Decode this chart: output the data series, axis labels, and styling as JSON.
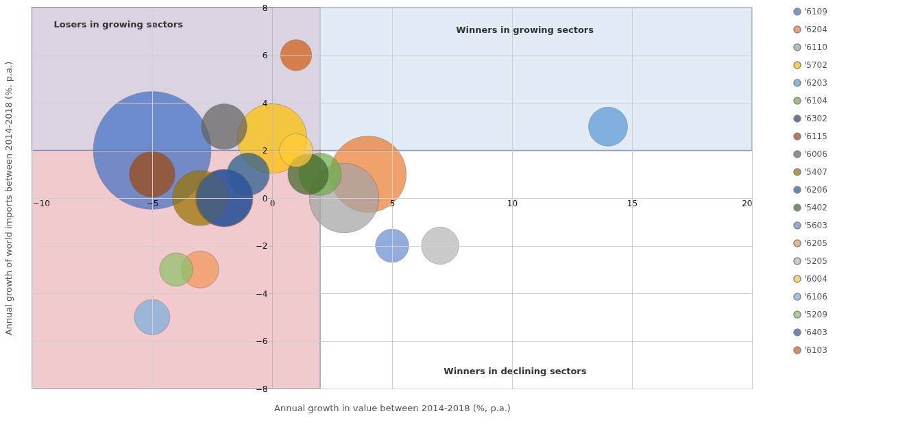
{
  "chart_data": {
    "type": "bubble",
    "xlabel": "Annual growth in value between 2014-2018 (%, p.a.)",
    "ylabel": "Annual growth of world imports between 2014-2018 (%, p.a.)",
    "xlim": [
      -10,
      20
    ],
    "xticks": [
      -10,
      -5,
      0,
      5,
      10,
      15,
      20
    ],
    "ylim": [
      -8,
      8
    ],
    "yticks": [
      -8,
      -6,
      -4,
      -2,
      0,
      2,
      4,
      6,
      8
    ],
    "grid": true,
    "legend": "right",
    "annotations": [
      "Losers in growing sectors",
      "Winners in growing sectors",
      "Winners in declining sectors"
    ],
    "bands": [
      {
        "axis": "x",
        "from": -10,
        "to": 2,
        "color": "#e6a0a6"
      },
      {
        "axis": "y",
        "from": 2,
        "to": 8,
        "color": "#c9dcf0"
      }
    ],
    "series": [
      {
        "name": "'6109",
        "color": "#4472c4",
        "x": [
          -5
        ],
        "values": [
          2
        ],
        "sizes": [
          1
        ]
      },
      {
        "name": "'6204",
        "color": "#ed7d31",
        "x": [
          4
        ],
        "values": [
          1
        ],
        "sizes": [
          0.42
        ]
      },
      {
        "name": "'6110",
        "color": "#a5a5a5",
        "x": [
          3
        ],
        "values": [
          0
        ],
        "sizes": [
          0.35
        ]
      },
      {
        "name": "'5702",
        "color": "#ffc000",
        "x": [
          0
        ],
        "values": [
          2.5
        ],
        "sizes": [
          0.35
        ]
      },
      {
        "name": "'6203",
        "color": "#5b9bd5",
        "x": [
          14
        ],
        "values": [
          3
        ],
        "sizes": [
          0.11
        ]
      },
      {
        "name": "'6104",
        "color": "#70ad47",
        "x": [
          2
        ],
        "values": [
          1
        ],
        "sizes": [
          0.13
        ]
      },
      {
        "name": "'6302",
        "color": "#264478",
        "x": [
          -2
        ],
        "values": [
          0
        ],
        "sizes": [
          0.24
        ]
      },
      {
        "name": "'6115",
        "color": "#9e480e",
        "x": [
          -5
        ],
        "values": [
          1
        ],
        "sizes": [
          0.15
        ]
      },
      {
        "name": "'6006",
        "color": "#636363",
        "x": [
          -2
        ],
        "values": [
          3
        ],
        "sizes": [
          0.15
        ]
      },
      {
        "name": "'5407",
        "color": "#997300",
        "x": [
          -3
        ],
        "values": [
          0
        ],
        "sizes": [
          0.22
        ]
      },
      {
        "name": "'6206",
        "color": "#255e91",
        "x": [
          -1
        ],
        "values": [
          1
        ],
        "sizes": [
          0.13
        ]
      },
      {
        "name": "'5402",
        "color": "#43682b",
        "x": [
          1.5
        ],
        "values": [
          1
        ],
        "sizes": [
          0.12
        ]
      },
      {
        "name": "'5603",
        "color": "#698ed0",
        "x": [
          5
        ],
        "values": [
          -2
        ],
        "sizes": [
          0.08
        ]
      },
      {
        "name": "'6205",
        "color": "#f1975a",
        "x": [
          -3
        ],
        "values": [
          -3
        ],
        "sizes": [
          0.1
        ]
      },
      {
        "name": "'5205",
        "color": "#b7b7b7",
        "x": [
          7
        ],
        "values": [
          -2
        ],
        "sizes": [
          0.1
        ]
      },
      {
        "name": "'6004",
        "color": "#ffcd33",
        "x": [
          1
        ],
        "values": [
          2
        ],
        "sizes": [
          0.08
        ]
      },
      {
        "name": "'6106",
        "color": "#7cafdd",
        "x": [
          -5
        ],
        "values": [
          -5
        ],
        "sizes": [
          0.09
        ]
      },
      {
        "name": "'5209",
        "color": "#8cc168",
        "x": [
          -4
        ],
        "values": [
          -3
        ],
        "sizes": [
          0.08
        ]
      },
      {
        "name": "'6403",
        "color": "#335aa1",
        "x": [
          -2
        ],
        "values": [
          0
        ],
        "sizes": [
          0.22
        ]
      },
      {
        "name": "'6103",
        "color": "#d26012",
        "x": [
          1
        ],
        "values": [
          6
        ],
        "sizes": [
          0.07
        ]
      }
    ]
  }
}
